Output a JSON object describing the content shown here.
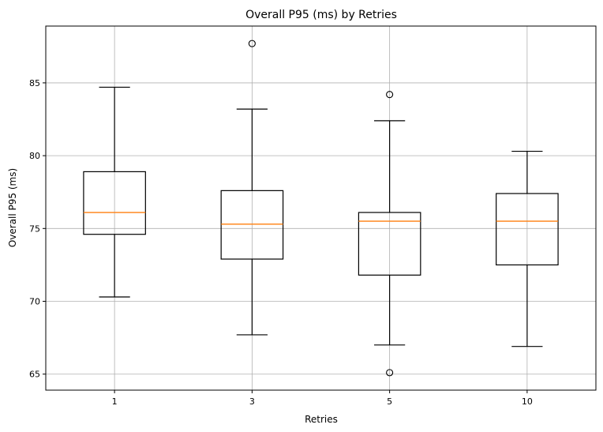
{
  "chart_data": {
    "type": "boxplot",
    "title": "Overall P95 (ms) by Retries",
    "xlabel": "Retries",
    "ylabel": "Overall P95 (ms)",
    "ylim": [
      63.9,
      88.9
    ],
    "yticks": [
      65,
      70,
      75,
      80,
      85
    ],
    "grid": true,
    "categories": [
      "1",
      "3",
      "5",
      "10"
    ],
    "boxes": [
      {
        "category": "1",
        "whisker_low": 70.3,
        "q1": 74.6,
        "median": 76.1,
        "q3": 78.9,
        "whisker_high": 84.7,
        "outliers": []
      },
      {
        "category": "3",
        "whisker_low": 67.7,
        "q1": 72.9,
        "median": 75.3,
        "q3": 77.6,
        "whisker_high": 83.2,
        "outliers": [
          87.7
        ]
      },
      {
        "category": "5",
        "whisker_low": 67.0,
        "q1": 71.8,
        "median": 75.5,
        "q3": 76.1,
        "whisker_high": 82.4,
        "outliers": [
          84.2,
          65.1
        ]
      },
      {
        "category": "10",
        "whisker_low": 66.9,
        "q1": 72.5,
        "median": 75.5,
        "q3": 77.4,
        "whisker_high": 80.3,
        "outliers": []
      }
    ],
    "colors": {
      "box": "#000000",
      "median": "#ff7f0e",
      "grid": "#b0b0b0"
    }
  }
}
